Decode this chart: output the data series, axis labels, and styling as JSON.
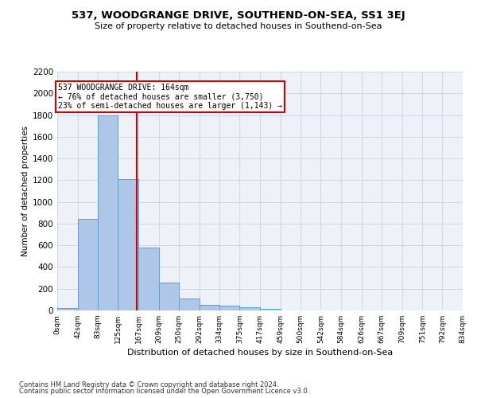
{
  "title": "537, WOODGRANGE DRIVE, SOUTHEND-ON-SEA, SS1 3EJ",
  "subtitle": "Size of property relative to detached houses in Southend-on-Sea",
  "xlabel": "Distribution of detached houses by size in Southend-on-Sea",
  "ylabel": "Number of detached properties",
  "footer1": "Contains HM Land Registry data © Crown copyright and database right 2024.",
  "footer2": "Contains public sector information licensed under the Open Government Licence v3.0.",
  "bin_edges": [
    0,
    42,
    83,
    125,
    167,
    209,
    250,
    292,
    334,
    375,
    417,
    459,
    500,
    542,
    584,
    626,
    667,
    709,
    751,
    792,
    834
  ],
  "bar_heights": [
    25,
    840,
    1800,
    1210,
    580,
    260,
    110,
    48,
    42,
    30,
    18,
    0,
    0,
    0,
    0,
    0,
    0,
    0,
    0,
    0
  ],
  "bar_color": "#aec6e8",
  "bar_edge_color": "#5a9fd4",
  "grid_color": "#d0d8e8",
  "vline_x": 164,
  "vline_color": "#cc0000",
  "annotation_text": "537 WOODGRANGE DRIVE: 164sqm\n← 76% of detached houses are smaller (3,750)\n23% of semi-detached houses are larger (1,143) →",
  "annotation_box_color": "#cc0000",
  "annotation_bg": "#ffffff",
  "ylim": [
    0,
    2200
  ],
  "yticks": [
    0,
    200,
    400,
    600,
    800,
    1000,
    1200,
    1400,
    1600,
    1800,
    2000,
    2200
  ],
  "tick_labels": [
    "0sqm",
    "42sqm",
    "83sqm",
    "125sqm",
    "167sqm",
    "209sqm",
    "250sqm",
    "292sqm",
    "334sqm",
    "375sqm",
    "417sqm",
    "459sqm",
    "500sqm",
    "542sqm",
    "584sqm",
    "626sqm",
    "667sqm",
    "709sqm",
    "751sqm",
    "792sqm",
    "834sqm"
  ]
}
